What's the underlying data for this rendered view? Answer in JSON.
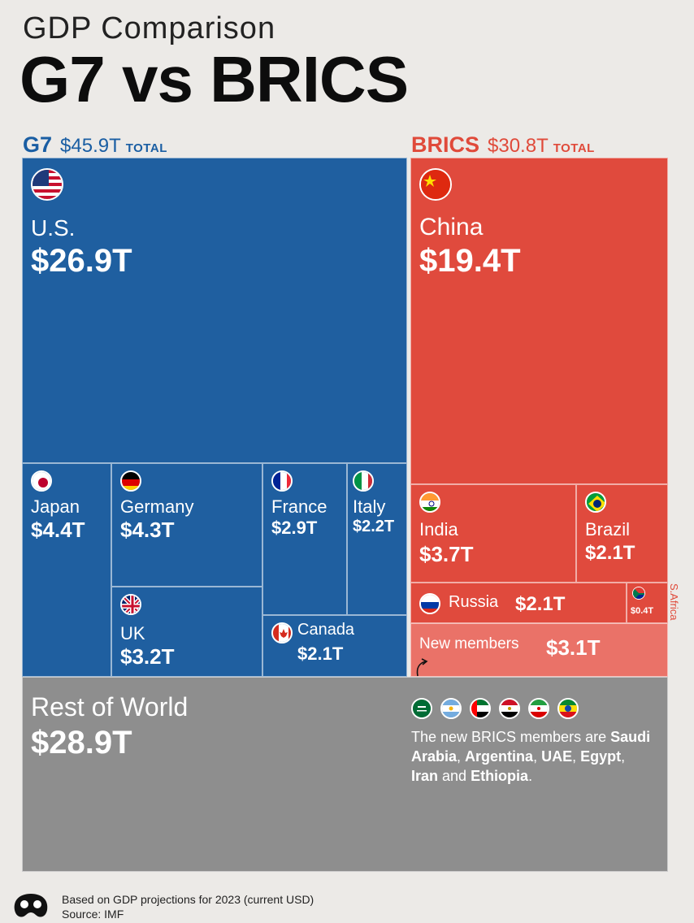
{
  "header": {
    "subtitle": "GDP Comparison",
    "title": "G7 vs BRICS"
  },
  "legend": {
    "g7": {
      "name": "G7",
      "total": "$45.9T",
      "total_label": "TOTAL"
    },
    "brics": {
      "name": "BRICS",
      "total": "$30.8T",
      "total_label": "TOTAL"
    }
  },
  "colors": {
    "g7": "#1f5fa0",
    "brics": "#e04a3d",
    "new_members": "#ea7268",
    "rest_of_world": "#8e8e8e"
  },
  "chart_data": {
    "type": "treemap",
    "unit": "USD trillions",
    "groups": [
      {
        "name": "G7",
        "total": 45.9,
        "items": [
          {
            "name": "U.S.",
            "label": "$26.9T",
            "value": 26.9,
            "flag": "us-flag-icon"
          },
          {
            "name": "Japan",
            "label": "$4.4T",
            "value": 4.4,
            "flag": "japan-flag-icon"
          },
          {
            "name": "Germany",
            "label": "$4.3T",
            "value": 4.3,
            "flag": "germany-flag-icon"
          },
          {
            "name": "UK",
            "label": "$3.2T",
            "value": 3.2,
            "flag": "uk-flag-icon"
          },
          {
            "name": "France",
            "label": "$2.9T",
            "value": 2.9,
            "flag": "france-flag-icon"
          },
          {
            "name": "Italy",
            "label": "$2.2T",
            "value": 2.2,
            "flag": "italy-flag-icon"
          },
          {
            "name": "Canada",
            "label": "$2.1T",
            "value": 2.1,
            "flag": "canada-flag-icon"
          }
        ]
      },
      {
        "name": "BRICS",
        "total": 30.8,
        "items": [
          {
            "name": "China",
            "label": "$19.4T",
            "value": 19.4,
            "flag": "china-flag-icon"
          },
          {
            "name": "India",
            "label": "$3.7T",
            "value": 3.7,
            "flag": "india-flag-icon"
          },
          {
            "name": "Brazil",
            "label": "$2.1T",
            "value": 2.1,
            "flag": "brazil-flag-icon"
          },
          {
            "name": "Russia",
            "label": "$2.1T",
            "value": 2.1,
            "flag": "russia-flag-icon"
          },
          {
            "name": "S.Africa",
            "label": "$0.4T",
            "value": 0.4,
            "flag": "south-africa-flag-icon"
          },
          {
            "name": "New members",
            "label": "$3.1T",
            "value": 3.1
          }
        ]
      },
      {
        "name": "Rest of World",
        "items": [
          {
            "name": "Rest of World",
            "label": "$28.9T",
            "value": 28.9
          }
        ]
      }
    ]
  },
  "new_members_note": {
    "flags": [
      "saudi-arabia-flag-icon",
      "argentina-flag-icon",
      "uae-flag-icon",
      "egypt-flag-icon",
      "iran-flag-icon",
      "ethiopia-flag-icon"
    ],
    "intro": "The new BRICS members are ",
    "countries": [
      "Saudi Arabia",
      "Argentina",
      "UAE",
      "Egypt",
      "Iran",
      "Ethiopia"
    ],
    "sep": ", ",
    "and": " and ",
    "end": "."
  },
  "footer": {
    "line1": "Based on GDP projections for 2023 (current USD)",
    "line2": "Source: IMF"
  }
}
